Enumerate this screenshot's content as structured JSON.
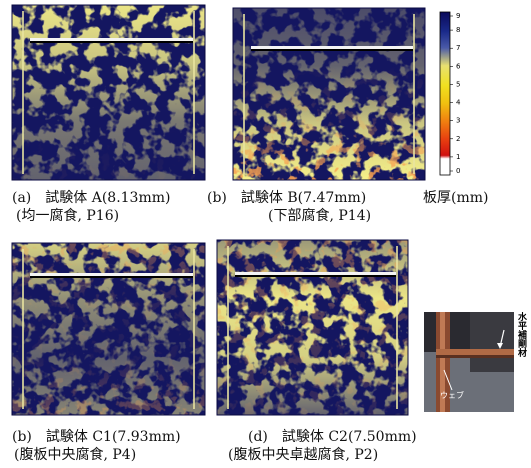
{
  "panels": [
    {
      "caption": "(a)　試験体 A(8.13mm)",
      "note": "(均一腐食, P16)"
    },
    {
      "caption": "(b)　試験体 B(7.47mm)",
      "note": "(下部腐食, P14)"
    },
    {
      "caption": "(b)　試験体 C1(7.93mm)",
      "note": "(腹板中央腐食, P4)"
    },
    {
      "caption": "(d)　試験体 C2(7.50mm)",
      "note": "(腹板中央卓越腐食, P2)"
    }
  ],
  "colorbar": {
    "unit": "板厚(mm)",
    "ticks": [
      9,
      8,
      7,
      6,
      5,
      4,
      3,
      2,
      1,
      0
    ]
  },
  "photo": {
    "web_label": "ウェブ",
    "stiffener_label": "水平補剛材"
  }
}
